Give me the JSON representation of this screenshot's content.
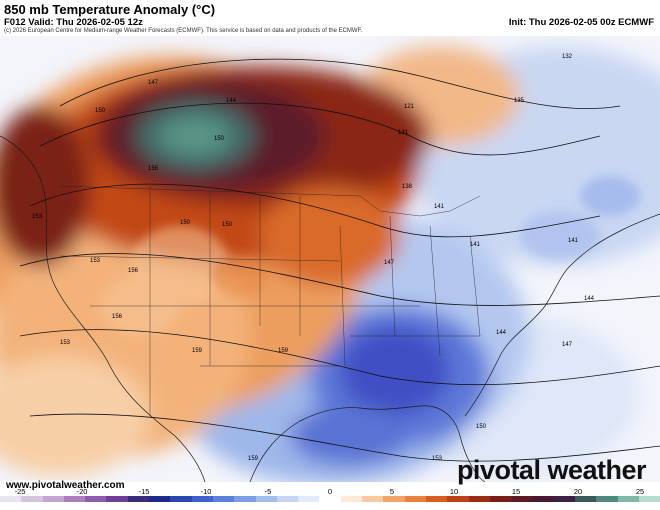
{
  "header": {
    "title": "850 mb Temperature Anomaly (°C)",
    "valid": "F012 Valid: Thu 2026-02-05 12z",
    "init": "Init: Thu 2026-02-05 00z ECMWF",
    "copyright": "(c) 2026 European Centre for Medium-range Weather Forecasts (ECMWF). This service is based on data and products of the ECMWF."
  },
  "footer": {
    "site": "www.pivotalweather.com",
    "brand": "pivotal weather"
  },
  "contour_labels": [
    {
      "text": "147"
    },
    {
      "text": "144"
    },
    {
      "text": "150"
    },
    {
      "text": "153"
    },
    {
      "text": "150"
    },
    {
      "text": "156"
    },
    {
      "text": "121"
    },
    {
      "text": "131"
    },
    {
      "text": "135"
    },
    {
      "text": "132"
    },
    {
      "text": "138"
    },
    {
      "text": "141"
    },
    {
      "text": "141"
    },
    {
      "text": "141"
    },
    {
      "text": "147"
    },
    {
      "text": "144"
    },
    {
      "text": "147"
    },
    {
      "text": "144"
    },
    {
      "text": "159"
    },
    {
      "text": "159"
    },
    {
      "text": "153"
    },
    {
      "text": "150"
    },
    {
      "text": "156"
    },
    {
      "text": "159"
    },
    {
      "text": "153"
    },
    {
      "text": "150"
    },
    {
      "text": "153"
    },
    {
      "text": "156"
    },
    {
      "text": "150"
    }
  ],
  "colorbar": {
    "labels": [
      "-25",
      "-20",
      "-15",
      "-10",
      "-5",
      "0",
      "5",
      "10",
      "15",
      "20",
      "25"
    ],
    "colors": [
      "#e9e2ef",
      "#d6c3e0",
      "#c3a4d2",
      "#a97fc0",
      "#8b5fae",
      "#6d3f98",
      "#3a2b7a",
      "#1d2a8a",
      "#2a46b0",
      "#3d62cc",
      "#5a82dc",
      "#7e9fe6",
      "#a3bdef",
      "#c6d5f5",
      "#e3eaf9",
      "#ffffff",
      "#fde9d6",
      "#f8c9a2",
      "#f1a36a",
      "#e8823c",
      "#d95f1e",
      "#bd4115",
      "#9a2c12",
      "#7a1e15",
      "#5e1a22",
      "#4a1a35",
      "#3c2046",
      "#3a5a5a",
      "#4f8a80",
      "#7fb8a8",
      "#b6dcd0"
    ]
  },
  "chart_data": {
    "type": "heatmap",
    "title": "850 mb Temperature Anomaly (°C)",
    "colorbar_ticks": [
      -25,
      -20,
      -15,
      -10,
      -5,
      0,
      5,
      10,
      15,
      20,
      25
    ],
    "units": "°C"
  }
}
